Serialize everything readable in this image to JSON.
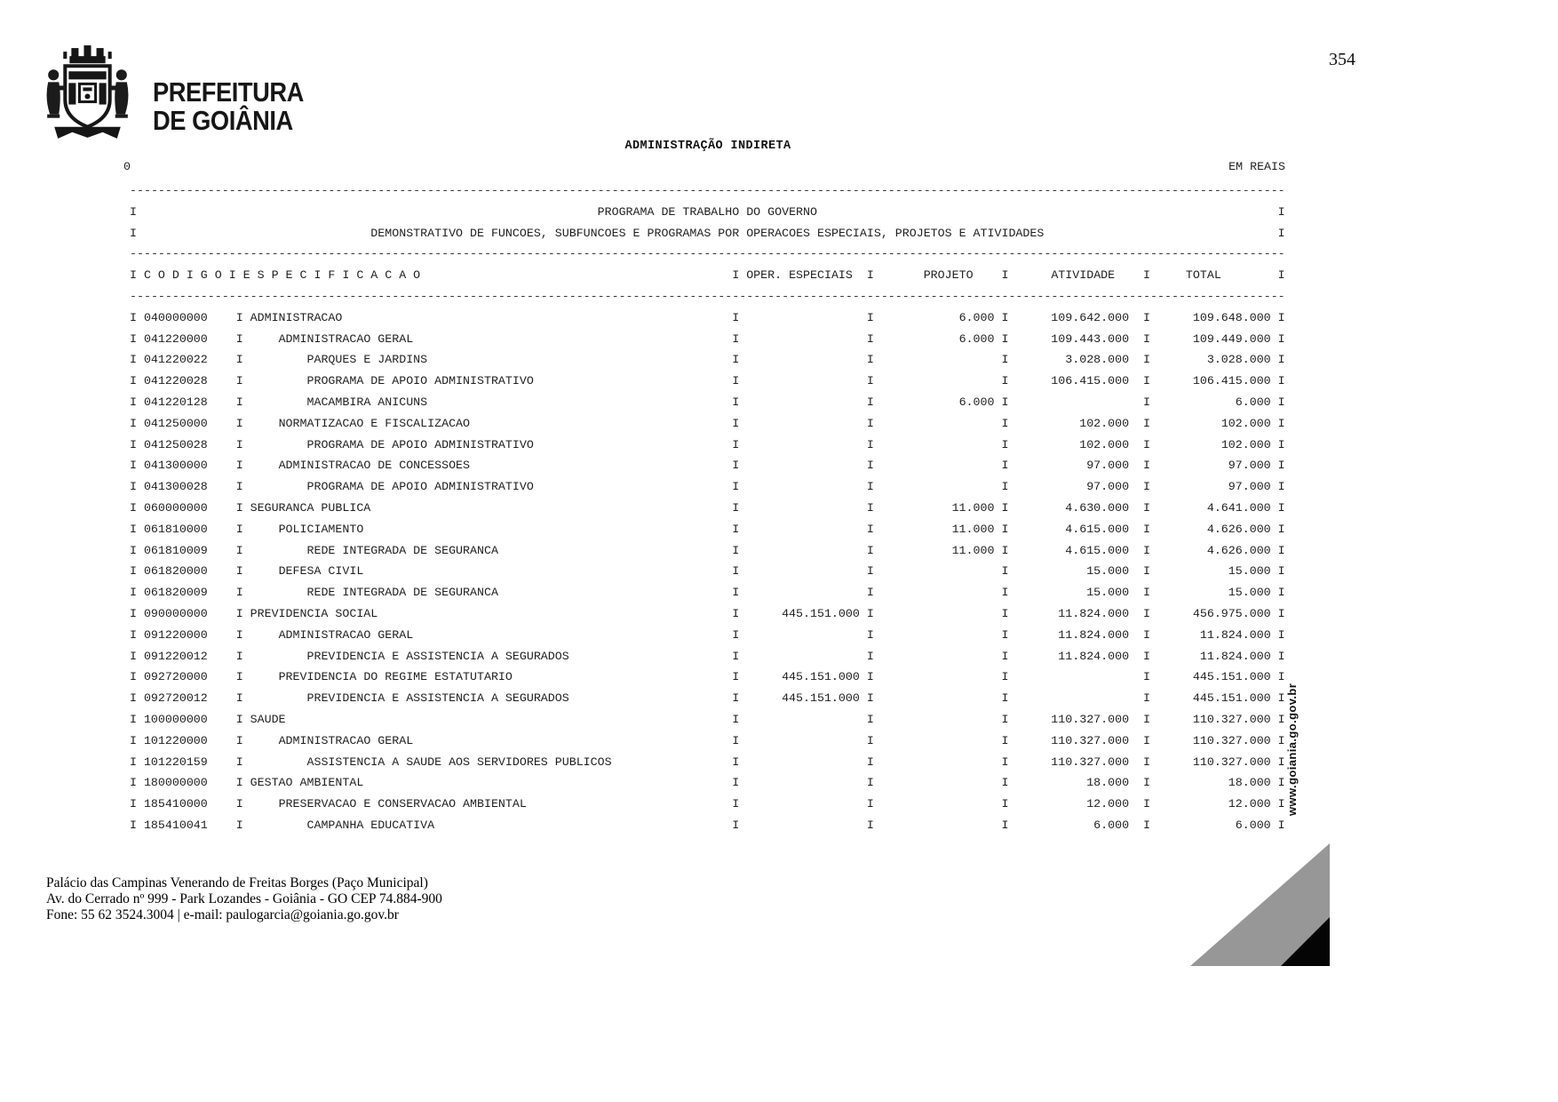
{
  "page": {
    "number": "354",
    "brand_line1": "PREFEITURA",
    "brand_line2": "DE GOIÂNIA",
    "section_title": "ADMINISTRAÇÃO INDIRETA",
    "left_mark": "0",
    "currency_note": "EM REAIS",
    "vertical_watermark": "www.goiania.go.gov.br",
    "footer_line1": "Palácio das Campinas Venerando de Freitas Borges (Paço Municipal)",
    "footer_line2": "Av. do Cerrado nº 999 - Park Lozandes - Goiânia - GO CEP 74.884-900",
    "footer_line3": "Fone: 55 62 3524.3004 | e-mail: paulogarcia@goiania.go.gov.br"
  },
  "table": {
    "title_line1": "PROGRAMA DE TRABALHO DO GOVERNO",
    "title_line2": "DEMONSTRATIVO DE FUNCOES, SUBFUNCOES E PROGRAMAS POR OPERACOES ESPECIAIS, PROJETOS E ATIVIDADES",
    "header": {
      "codigo": "C O D I G O",
      "especificacao": "E S P E C I F I C A C A O",
      "oper_especiais": "OPER. ESPECIAIS",
      "projeto": "PROJETO",
      "atividade": "ATIVIDADE",
      "total": "TOTAL"
    },
    "rows": [
      {
        "code": "040000000",
        "indent": 0,
        "spec": "ADMINISTRACAO",
        "oper": "",
        "projeto": "6.000",
        "atividade": "109.642.000",
        "total": "109.648.000"
      },
      {
        "code": "041220000",
        "indent": 1,
        "spec": "ADMINISTRACAO GERAL",
        "oper": "",
        "projeto": "6.000",
        "atividade": "109.443.000",
        "total": "109.449.000"
      },
      {
        "code": "041220022",
        "indent": 2,
        "spec": "PARQUES E JARDINS",
        "oper": "",
        "projeto": "",
        "atividade": "3.028.000",
        "total": "3.028.000"
      },
      {
        "code": "041220028",
        "indent": 2,
        "spec": "PROGRAMA DE APOIO ADMINISTRATIVO",
        "oper": "",
        "projeto": "",
        "atividade": "106.415.000",
        "total": "106.415.000"
      },
      {
        "code": "041220128",
        "indent": 2,
        "spec": "MACAMBIRA ANICUNS",
        "oper": "",
        "projeto": "6.000",
        "atividade": "",
        "total": "6.000"
      },
      {
        "code": "041250000",
        "indent": 1,
        "spec": "NORMATIZACAO E FISCALIZACAO",
        "oper": "",
        "projeto": "",
        "atividade": "102.000",
        "total": "102.000"
      },
      {
        "code": "041250028",
        "indent": 2,
        "spec": "PROGRAMA DE APOIO ADMINISTRATIVO",
        "oper": "",
        "projeto": "",
        "atividade": "102.000",
        "total": "102.000"
      },
      {
        "code": "041300000",
        "indent": 1,
        "spec": "ADMINISTRACAO DE CONCESSOES",
        "oper": "",
        "projeto": "",
        "atividade": "97.000",
        "total": "97.000"
      },
      {
        "code": "041300028",
        "indent": 2,
        "spec": "PROGRAMA DE APOIO ADMINISTRATIVO",
        "oper": "",
        "projeto": "",
        "atividade": "97.000",
        "total": "97.000"
      },
      {
        "code": "060000000",
        "indent": 0,
        "spec": "SEGURANCA PUBLICA",
        "oper": "",
        "projeto": "11.000",
        "atividade": "4.630.000",
        "total": "4.641.000"
      },
      {
        "code": "061810000",
        "indent": 1,
        "spec": "POLICIAMENTO",
        "oper": "",
        "projeto": "11.000",
        "atividade": "4.615.000",
        "total": "4.626.000"
      },
      {
        "code": "061810009",
        "indent": 2,
        "spec": "REDE INTEGRADA DE SEGURANCA",
        "oper": "",
        "projeto": "11.000",
        "atividade": "4.615.000",
        "total": "4.626.000"
      },
      {
        "code": "061820000",
        "indent": 1,
        "spec": "DEFESA CIVIL",
        "oper": "",
        "projeto": "",
        "atividade": "15.000",
        "total": "15.000"
      },
      {
        "code": "061820009",
        "indent": 2,
        "spec": "REDE INTEGRADA DE SEGURANCA",
        "oper": "",
        "projeto": "",
        "atividade": "15.000",
        "total": "15.000"
      },
      {
        "code": "090000000",
        "indent": 0,
        "spec": "PREVIDENCIA SOCIAL",
        "oper": "445.151.000",
        "projeto": "",
        "atividade": "11.824.000",
        "total": "456.975.000"
      },
      {
        "code": "091220000",
        "indent": 1,
        "spec": "ADMINISTRACAO GERAL",
        "oper": "",
        "projeto": "",
        "atividade": "11.824.000",
        "total": "11.824.000"
      },
      {
        "code": "091220012",
        "indent": 2,
        "spec": "PREVIDENCIA E ASSISTENCIA A SEGURADOS",
        "oper": "",
        "projeto": "",
        "atividade": "11.824.000",
        "total": "11.824.000"
      },
      {
        "code": "092720000",
        "indent": 1,
        "spec": "PREVIDENCIA DO REGIME ESTATUTARIO",
        "oper": "445.151.000",
        "projeto": "",
        "atividade": "",
        "total": "445.151.000"
      },
      {
        "code": "092720012",
        "indent": 2,
        "spec": "PREVIDENCIA E ASSISTENCIA A SEGURADOS",
        "oper": "445.151.000",
        "projeto": "",
        "atividade": "",
        "total": "445.151.000"
      },
      {
        "code": "100000000",
        "indent": 0,
        "spec": "SAUDE",
        "oper": "",
        "projeto": "",
        "atividade": "110.327.000",
        "total": "110.327.000"
      },
      {
        "code": "101220000",
        "indent": 1,
        "spec": "ADMINISTRACAO GERAL",
        "oper": "",
        "projeto": "",
        "atividade": "110.327.000",
        "total": "110.327.000"
      },
      {
        "code": "101220159",
        "indent": 2,
        "spec": "ASSISTENCIA A SAUDE AOS SERVIDORES PUBLICOS",
        "oper": "",
        "projeto": "",
        "atividade": "110.327.000",
        "total": "110.327.000"
      },
      {
        "code": "180000000",
        "indent": 0,
        "spec": "GESTAO AMBIENTAL",
        "oper": "",
        "projeto": "",
        "atividade": "18.000",
        "total": "18.000"
      },
      {
        "code": "185410000",
        "indent": 1,
        "spec": "PRESERVACAO E CONSERVACAO AMBIENTAL",
        "oper": "",
        "projeto": "",
        "atividade": "12.000",
        "total": "12.000"
      },
      {
        "code": "185410041",
        "indent": 2,
        "spec": "CAMPANHA EDUCATIVA",
        "oper": "",
        "projeto": "",
        "atividade": "6.000",
        "total": "6.000"
      }
    ]
  }
}
